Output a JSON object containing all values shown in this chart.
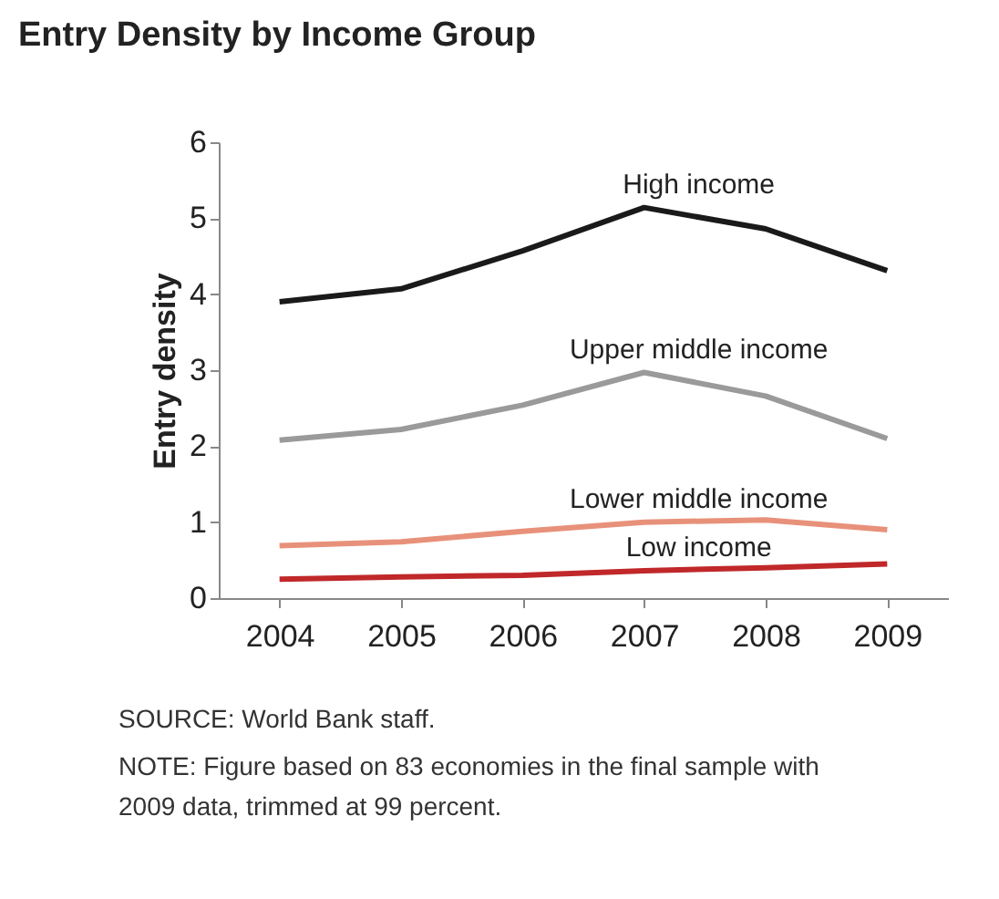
{
  "chart_data": {
    "type": "line",
    "title": "Entry Density by Income Group",
    "ylabel": "Entry density",
    "categories": [
      "2004",
      "2005",
      "2006",
      "2007",
      "2008",
      "2009"
    ],
    "series": [
      {
        "name": "High income",
        "color": "#1a1a1a",
        "values": [
          3.9,
          4.07,
          4.57,
          5.14,
          4.86,
          4.31
        ]
      },
      {
        "name": "Upper middle income",
        "color": "#9a9a9a",
        "values": [
          2.08,
          2.22,
          2.54,
          2.97,
          2.66,
          2.1
        ]
      },
      {
        "name": "Lower middle income",
        "color": "#e8917a",
        "values": [
          0.69,
          0.74,
          0.88,
          1.0,
          1.03,
          0.9
        ]
      },
      {
        "name": "Low income",
        "color": "#c0282a",
        "values": [
          0.25,
          0.28,
          0.3,
          0.36,
          0.4,
          0.45
        ]
      }
    ],
    "ylim": [
      0,
      6
    ],
    "yticks": [
      0,
      1,
      2,
      3,
      4,
      5,
      6
    ],
    "grid": false,
    "legend": false,
    "marker": "none",
    "line_style": "solid",
    "annotations": [
      "SOURCE: World Bank staff.",
      "NOTE: Figure based on 83 economies in the final sample with 2009 data, trimmed at 99 percent."
    ]
  }
}
